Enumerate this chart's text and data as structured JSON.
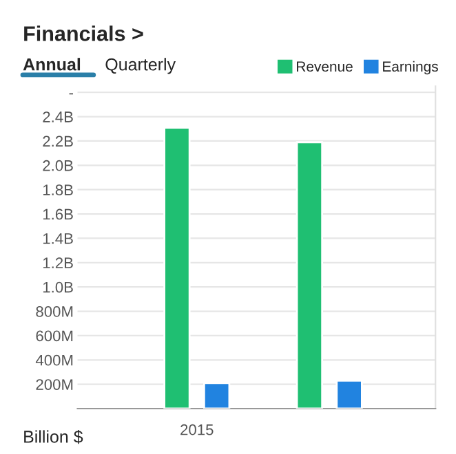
{
  "chart_data": {
    "type": "bar",
    "title": "Financials >",
    "annotations": [
      "Annual",
      "Quarterly",
      "Billion $"
    ],
    "categories": [
      "2015",
      null
    ],
    "series": [
      {
        "name": "Revenue",
        "color": "#1fbf72",
        "values": [
          2310000000,
          2190000000
        ]
      },
      {
        "name": "Earnings",
        "color": "#2183e0",
        "values": [
          210000000,
          230000000
        ]
      }
    ],
    "ylim": [
      0,
      2650000000
    ],
    "yticks": [
      {
        "value": 200000000,
        "label": "200M"
      },
      {
        "value": 400000000,
        "label": "400M"
      },
      {
        "value": 600000000,
        "label": "600M"
      },
      {
        "value": 800000000,
        "label": "800M"
      },
      {
        "value": 1000000000,
        "label": "1.0B"
      },
      {
        "value": 1200000000,
        "label": "1.2B"
      },
      {
        "value": 1400000000,
        "label": "1.4B"
      },
      {
        "value": 1600000000,
        "label": "1.6B"
      },
      {
        "value": 1800000000,
        "label": "1.8B"
      },
      {
        "value": 2000000000,
        "label": "2.0B"
      },
      {
        "value": 2200000000,
        "label": "2.2B"
      },
      {
        "value": 2400000000,
        "label": "2.4B"
      },
      {
        "value": 2600000000,
        "label": "-"
      }
    ],
    "grid": "y",
    "legend": "top right"
  }
}
